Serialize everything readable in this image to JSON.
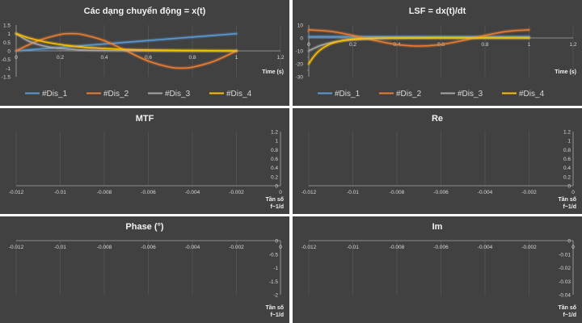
{
  "chart_data": [
    {
      "type": "line",
      "title": "Các dạng chuyển động  = x(t)",
      "xlabel": "Time (s)",
      "xlim": [
        0,
        1.2
      ],
      "ylim": [
        -1.5,
        1.5
      ],
      "xticks": [
        "0",
        "0.2",
        "0.4",
        "0.6",
        "0.8",
        "1",
        "1.2"
      ],
      "yticks": [
        "1.5",
        "1",
        "0.5",
        "0",
        "-0.5",
        "-1",
        "-1.5"
      ],
      "xtick_values": [
        0,
        0.2,
        0.4,
        0.6,
        0.8,
        1,
        1.2
      ],
      "ytick_values": [
        1.5,
        1,
        0.5,
        0,
        -0.5,
        -1,
        -1.5
      ],
      "grid": "vertical",
      "legend": "bottom",
      "series": [
        {
          "name": "#Dis_1",
          "color": "#5b9bd5",
          "x": [
            0,
            0.1,
            0.2,
            0.3,
            0.4,
            0.5,
            0.6,
            0.7,
            0.8,
            0.9,
            1.0
          ],
          "y": [
            0,
            0.1,
            0.2,
            0.3,
            0.4,
            0.5,
            0.6,
            0.7,
            0.8,
            0.9,
            1.0
          ]
        },
        {
          "name": "#Dis_2",
          "color": "#ed7d31",
          "x": [
            0,
            0.1,
            0.2,
            0.25,
            0.3,
            0.4,
            0.5,
            0.6,
            0.7,
            0.75,
            0.8,
            0.9,
            1.0
          ],
          "y": [
            0,
            0.59,
            0.95,
            1.0,
            0.95,
            0.59,
            0,
            -0.59,
            -0.95,
            -1.0,
            -0.95,
            -0.59,
            0
          ]
        },
        {
          "name": "#Dis_3",
          "color": "#a5a5a5",
          "x": [
            0,
            0.05,
            0.1,
            0.15,
            0.2,
            0.3,
            0.4,
            0.5,
            0.6,
            0.8,
            1.0
          ],
          "y": [
            1.0,
            0.61,
            0.37,
            0.22,
            0.14,
            0.05,
            0.02,
            0.01,
            0,
            0,
            0
          ]
        },
        {
          "name": "#Dis_4",
          "color": "#ffc000",
          "x": [
            0,
            0.05,
            0.1,
            0.15,
            0.2,
            0.3,
            0.4,
            0.5,
            0.6,
            0.8,
            1.0
          ],
          "y": [
            1.0,
            0.78,
            0.61,
            0.47,
            0.37,
            0.22,
            0.14,
            0.08,
            0.05,
            0.02,
            0
          ]
        }
      ]
    },
    {
      "type": "line",
      "title": "LSF = dx(t)/dt",
      "xlabel": "Time (s)",
      "xlim": [
        0,
        1.2
      ],
      "ylim": [
        -30,
        10
      ],
      "xticks": [
        "0",
        "0.2",
        "0.4",
        "0.6",
        "0.8",
        "1",
        "1.2"
      ],
      "yticks": [
        "10",
        "0",
        "-10",
        "-20",
        "-30"
      ],
      "xtick_values": [
        0,
        0.2,
        0.4,
        0.6,
        0.8,
        1,
        1.2
      ],
      "ytick_values": [
        10,
        0,
        -10,
        -20,
        -30
      ],
      "minor_yticks": [
        5,
        -5,
        -15,
        -25
      ],
      "grid": "vertical",
      "legend": "bottom",
      "series": [
        {
          "name": "#Dis_1",
          "color": "#5b9bd5",
          "x": [
            0,
            0.5,
            1.0
          ],
          "y": [
            1,
            1,
            1
          ]
        },
        {
          "name": "#Dis_2",
          "color": "#ed7d31",
          "x": [
            0,
            0.1,
            0.2,
            0.25,
            0.3,
            0.4,
            0.5,
            0.6,
            0.7,
            0.75,
            0.8,
            0.9,
            1.0
          ],
          "y": [
            6.28,
            5.08,
            1.94,
            0,
            -1.94,
            -5.08,
            -6.28,
            -5.08,
            -1.94,
            0,
            1.94,
            5.08,
            6.28
          ]
        },
        {
          "name": "#Dis_3",
          "color": "#a5a5a5",
          "x": [
            0,
            0.05,
            0.1,
            0.15,
            0.2,
            0.3,
            0.4,
            0.5,
            0.6,
            0.8,
            1.0
          ],
          "y": [
            -10,
            -6.1,
            -3.7,
            -2.2,
            -1.4,
            -0.5,
            -0.2,
            -0.1,
            0,
            0,
            0
          ]
        },
        {
          "name": "#Dis_4",
          "color": "#ffc000",
          "x": [
            0,
            0.02,
            0.05,
            0.1,
            0.15,
            0.2,
            0.3,
            0.4,
            0.5,
            0.6,
            0.8,
            1.0
          ],
          "y": [
            -20,
            -15,
            -9.5,
            -4.5,
            -2.1,
            -1.0,
            -0.2,
            -0.05,
            0,
            0,
            0,
            0
          ]
        }
      ]
    },
    {
      "type": "line",
      "title": "MTF",
      "xlabel": "Tần số\nf~1/d",
      "xlim": [
        -0.012,
        0
      ],
      "ylim": [
        0,
        1.2
      ],
      "xticks": [
        "-0.012",
        "-0.01",
        "-0.008",
        "-0.006",
        "-0.004",
        "-0.002",
        "0"
      ],
      "yticks": [
        "1.2",
        "1",
        "0.8",
        "0.6",
        "0.4",
        "0.2",
        "0"
      ],
      "xtick_values": [
        -0.012,
        -0.01,
        -0.008,
        -0.006,
        -0.004,
        -0.002,
        0
      ],
      "ytick_values": [
        1.2,
        1,
        0.8,
        0.6,
        0.4,
        0.2,
        0
      ],
      "grid": "vertical",
      "series": []
    },
    {
      "type": "line",
      "title": "Re",
      "xlabel": "Tần số\nf~1/d",
      "xlim": [
        -0.012,
        0
      ],
      "ylim": [
        0,
        1.2
      ],
      "xticks": [
        "-0.012",
        "-0.01",
        "-0.008",
        "-0.006",
        "-0.004",
        "-0.002",
        "0"
      ],
      "yticks": [
        "1.2",
        "1",
        "0.8",
        "0.6",
        "0.4",
        "0.2",
        "0"
      ],
      "xtick_values": [
        -0.012,
        -0.01,
        -0.008,
        -0.006,
        -0.004,
        -0.002,
        0
      ],
      "ytick_values": [
        1.2,
        1,
        0.8,
        0.6,
        0.4,
        0.2,
        0
      ],
      "grid": "vertical",
      "series": []
    },
    {
      "type": "line",
      "title": "Phase (°)",
      "xlabel": "Tần số\nf~1/d",
      "xlim": [
        -0.012,
        0
      ],
      "ylim": [
        -2,
        0
      ],
      "xticks": [
        "-0.012",
        "-0.01",
        "-0.008",
        "-0.006",
        "-0.004",
        "-0.002",
        "0"
      ],
      "yticks": [
        "0",
        "-0.5",
        "-1",
        "-1.5",
        "-2"
      ],
      "xtick_values": [
        -0.012,
        -0.01,
        -0.008,
        -0.006,
        -0.004,
        -0.002,
        0
      ],
      "ytick_values": [
        0,
        -0.5,
        -1,
        -1.5,
        -2
      ],
      "grid": "vertical",
      "series": []
    },
    {
      "type": "line",
      "title": "Im",
      "xlabel": "Tần số\nf~1/d",
      "xlim": [
        -0.012,
        0
      ],
      "ylim": [
        -0.04,
        0
      ],
      "xticks": [
        "-0.012",
        "-0.01",
        "-0.008",
        "-0.006",
        "-0.004",
        "-0.002",
        "0"
      ],
      "yticks": [
        "0",
        "-0.01",
        "-0.02",
        "-0.03",
        "-0.04"
      ],
      "xtick_values": [
        -0.012,
        -0.01,
        -0.008,
        -0.006,
        -0.004,
        -0.002,
        0
      ],
      "ytick_values": [
        0,
        -0.01,
        -0.02,
        -0.03,
        -0.04
      ],
      "grid": "vertical",
      "series": []
    }
  ]
}
